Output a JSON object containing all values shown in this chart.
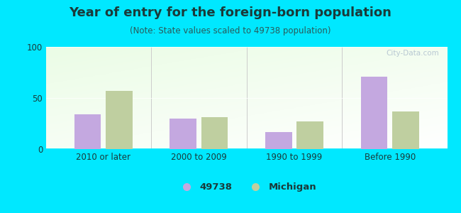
{
  "title": "Year of entry for the foreign-born population",
  "subtitle": "(Note: State values scaled to 49738 population)",
  "categories": [
    "2010 or later",
    "2000 to 2009",
    "1990 to 1999",
    "Before 1990"
  ],
  "values_49738": [
    34,
    30,
    17,
    71
  ],
  "values_michigan": [
    57,
    31,
    27,
    37
  ],
  "bar_color_49738": "#c4a8e0",
  "bar_color_michigan": "#bfcfa0",
  "background_color": "#00e8ff",
  "plot_bg": "#e8f5e8",
  "ylim": [
    0,
    100
  ],
  "yticks": [
    0,
    50,
    100
  ],
  "legend_label_1": "49738",
  "legend_label_2": "Michigan",
  "title_fontsize": 13,
  "subtitle_fontsize": 8.5,
  "tick_fontsize": 8.5,
  "legend_fontsize": 9.5,
  "title_color": "#1a3a3a",
  "subtitle_color": "#2a5a5a",
  "tick_color": "#1a3a3a"
}
